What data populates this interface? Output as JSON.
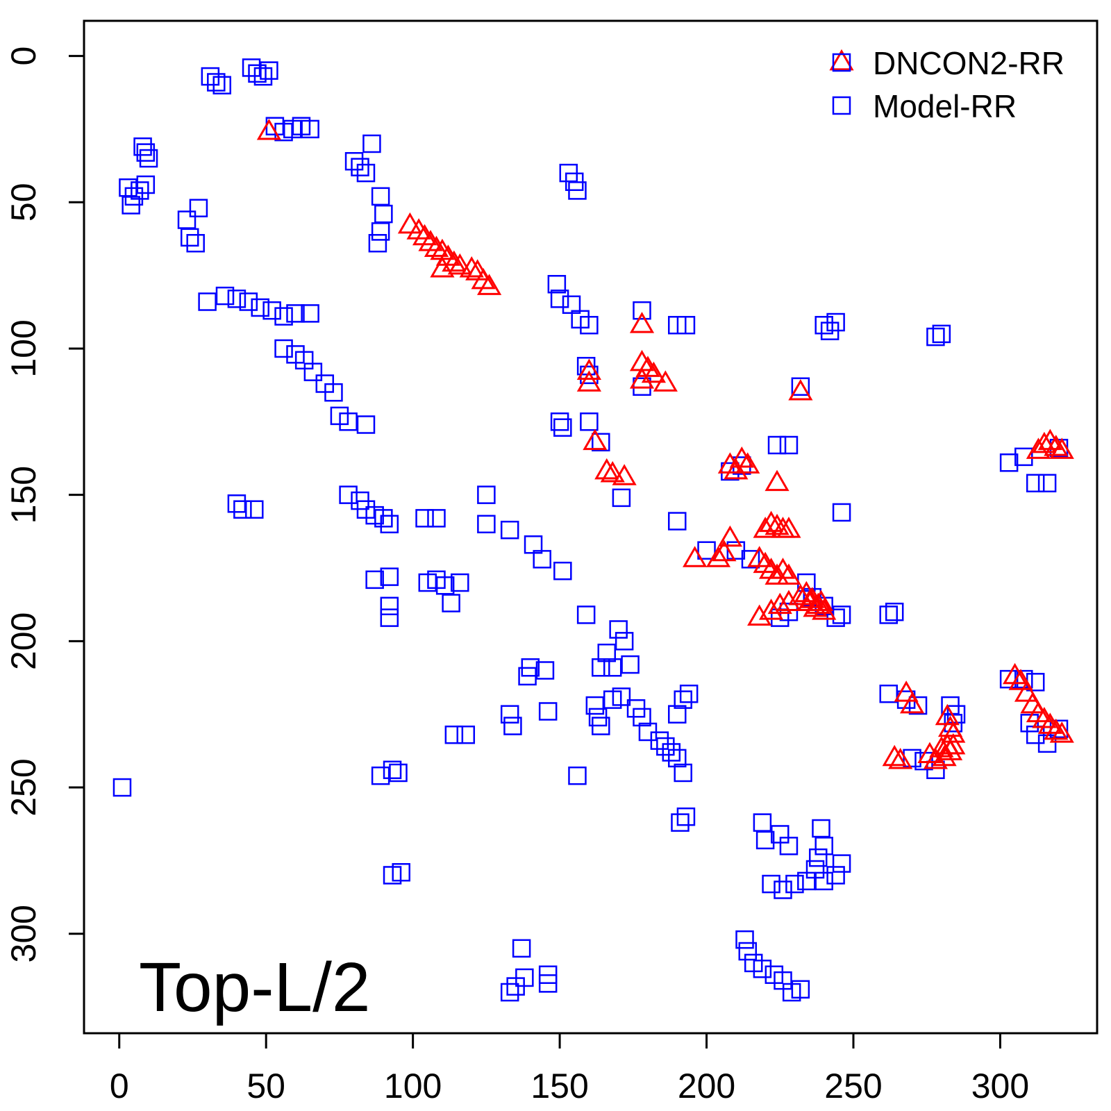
{
  "chart_data": {
    "type": "scatter",
    "title": "",
    "xlabel": "",
    "ylabel": "",
    "xlim": [
      -12,
      333
    ],
    "ylim": [
      -12,
      334
    ],
    "y_axis_inverted": true,
    "x_ticks": [
      "0",
      "50",
      "100",
      "150",
      "200",
      "250",
      "300"
    ],
    "y_ticks": [
      "0",
      "50",
      "100",
      "150",
      "200",
      "250",
      "300"
    ],
    "annotation": "Top-L/2",
    "legend": {
      "position": "top-right",
      "entries": [
        {
          "label": "DNCON2-RR",
          "markers": [
            "triangle",
            "square"
          ],
          "colors": [
            "#ff0000",
            "#0000ff"
          ]
        },
        {
          "label": "Model-RR",
          "markers": [
            "square"
          ],
          "colors": [
            "#0000ff"
          ]
        }
      ]
    },
    "series": [
      {
        "marker": "square",
        "color": "#0000ff",
        "points": [
          [
            31,
            7
          ],
          [
            33,
            9
          ],
          [
            35,
            10
          ],
          [
            45,
            4
          ],
          [
            47,
            6
          ],
          [
            49,
            7
          ],
          [
            51,
            5
          ],
          [
            53,
            24
          ],
          [
            56,
            26
          ],
          [
            59,
            25
          ],
          [
            62,
            24
          ],
          [
            65,
            25
          ],
          [
            8,
            31
          ],
          [
            9,
            33
          ],
          [
            10,
            35
          ],
          [
            3,
            45
          ],
          [
            5,
            48
          ],
          [
            7,
            46
          ],
          [
            9,
            44
          ],
          [
            4,
            51
          ],
          [
            80,
            36
          ],
          [
            82,
            38
          ],
          [
            84,
            40
          ],
          [
            86,
            30
          ],
          [
            89,
            48
          ],
          [
            90,
            54
          ],
          [
            89,
            60
          ],
          [
            88,
            64
          ],
          [
            23,
            56
          ],
          [
            24,
            62
          ],
          [
            26,
            64
          ],
          [
            27,
            52
          ],
          [
            30,
            84
          ],
          [
            36,
            82
          ],
          [
            40,
            83
          ],
          [
            44,
            84
          ],
          [
            48,
            86
          ],
          [
            52,
            87
          ],
          [
            56,
            89
          ],
          [
            60,
            88
          ],
          [
            65,
            88
          ],
          [
            56,
            100
          ],
          [
            60,
            102
          ],
          [
            63,
            104
          ],
          [
            66,
            108
          ],
          [
            70,
            112
          ],
          [
            73,
            115
          ],
          [
            75,
            123
          ],
          [
            78,
            125
          ],
          [
            84,
            126
          ],
          [
            40,
            153
          ],
          [
            42,
            155
          ],
          [
            46,
            155
          ],
          [
            78,
            150
          ],
          [
            82,
            152
          ],
          [
            84,
            155
          ],
          [
            87,
            157
          ],
          [
            90,
            158
          ],
          [
            92,
            160
          ],
          [
            104,
            158
          ],
          [
            108,
            158
          ],
          [
            87,
            179
          ],
          [
            92,
            178
          ],
          [
            92,
            188
          ],
          [
            92,
            192
          ],
          [
            105,
            180
          ],
          [
            108,
            179
          ],
          [
            111,
            181
          ],
          [
            113,
            187
          ],
          [
            116,
            180
          ],
          [
            125,
            150
          ],
          [
            125,
            160
          ],
          [
            133,
            162
          ],
          [
            141,
            167
          ],
          [
            144,
            172
          ],
          [
            151,
            176
          ],
          [
            159,
            191
          ],
          [
            140,
            209
          ],
          [
            139,
            212
          ],
          [
            145,
            210
          ],
          [
            146,
            224
          ],
          [
            133,
            225
          ],
          [
            134,
            229
          ],
          [
            114,
            232
          ],
          [
            118,
            232
          ],
          [
            89,
            246
          ],
          [
            93,
            244
          ],
          [
            95,
            245
          ],
          [
            93,
            280
          ],
          [
            96,
            279
          ],
          [
            1,
            250
          ],
          [
            156,
            246
          ],
          [
            137,
            305
          ],
          [
            133,
            320
          ],
          [
            135,
            318
          ],
          [
            138,
            315
          ],
          [
            146,
            314
          ],
          [
            146,
            317
          ],
          [
            150,
            125
          ],
          [
            151,
            127
          ],
          [
            160,
            125
          ],
          [
            153,
            40
          ],
          [
            155,
            43
          ],
          [
            156,
            46
          ],
          [
            149,
            78
          ],
          [
            150,
            83
          ],
          [
            154,
            85
          ],
          [
            157,
            90
          ],
          [
            160,
            92
          ],
          [
            178,
            87
          ],
          [
            178,
            113
          ],
          [
            190,
            92
          ],
          [
            193,
            92
          ],
          [
            159,
            106
          ],
          [
            160,
            109
          ],
          [
            232,
            113
          ],
          [
            164,
            132
          ],
          [
            171,
            151
          ],
          [
            190,
            159
          ],
          [
            200,
            169
          ],
          [
            210,
            169
          ],
          [
            215,
            172
          ],
          [
            208,
            142
          ],
          [
            212,
            140
          ],
          [
            224,
            133
          ],
          [
            228,
            133
          ],
          [
            234,
            180
          ],
          [
            236,
            185
          ],
          [
            240,
            188
          ],
          [
            244,
            192
          ],
          [
            246,
            191
          ],
          [
            225,
            192
          ],
          [
            228,
            190
          ],
          [
            166,
            204
          ],
          [
            164,
            209
          ],
          [
            168,
            209
          ],
          [
            170,
            196
          ],
          [
            172,
            200
          ],
          [
            174,
            208
          ],
          [
            171,
            219
          ],
          [
            176,
            223
          ],
          [
            178,
            226
          ],
          [
            180,
            231
          ],
          [
            184,
            234
          ],
          [
            186,
            236
          ],
          [
            188,
            238
          ],
          [
            190,
            240
          ],
          [
            192,
            245
          ],
          [
            192,
            220
          ],
          [
            190,
            225
          ],
          [
            194,
            218
          ],
          [
            162,
            222
          ],
          [
            163,
            226
          ],
          [
            164,
            229
          ],
          [
            168,
            220
          ],
          [
            191,
            262
          ],
          [
            193,
            260
          ],
          [
            219,
            262
          ],
          [
            220,
            268
          ],
          [
            225,
            266
          ],
          [
            228,
            270
          ],
          [
            222,
            283
          ],
          [
            226,
            285
          ],
          [
            230,
            283
          ],
          [
            234,
            282
          ],
          [
            237,
            278
          ],
          [
            238,
            274
          ],
          [
            240,
            270
          ],
          [
            239,
            264
          ],
          [
            240,
            282
          ],
          [
            244,
            280
          ],
          [
            246,
            276
          ],
          [
            213,
            302
          ],
          [
            214,
            306
          ],
          [
            216,
            310
          ],
          [
            219,
            312
          ],
          [
            223,
            314
          ],
          [
            226,
            316
          ],
          [
            229,
            320
          ],
          [
            232,
            319
          ],
          [
            240,
            92
          ],
          [
            242,
            94
          ],
          [
            244,
            91
          ],
          [
            278,
            96
          ],
          [
            280,
            95
          ],
          [
            246,
            156
          ],
          [
            262,
            191
          ],
          [
            264,
            190
          ],
          [
            262,
            218
          ],
          [
            268,
            220
          ],
          [
            272,
            222
          ],
          [
            283,
            222
          ],
          [
            285,
            225
          ],
          [
            284,
            228
          ],
          [
            270,
            240
          ],
          [
            274,
            241
          ],
          [
            278,
            244
          ],
          [
            303,
            213
          ],
          [
            308,
            213
          ],
          [
            312,
            214
          ],
          [
            310,
            228
          ],
          [
            312,
            232
          ],
          [
            316,
            235
          ],
          [
            320,
            230
          ],
          [
            303,
            139
          ],
          [
            308,
            137
          ],
          [
            312,
            146
          ],
          [
            316,
            146
          ],
          [
            320,
            134
          ]
        ]
      },
      {
        "marker": "triangle",
        "color": "#ff0000",
        "points": [
          [
            51,
            26
          ],
          [
            99,
            58
          ],
          [
            102,
            60
          ],
          [
            104,
            62
          ],
          [
            106,
            64
          ],
          [
            108,
            66
          ],
          [
            110,
            67
          ],
          [
            112,
            69
          ],
          [
            114,
            71
          ],
          [
            110,
            73
          ],
          [
            116,
            72
          ],
          [
            120,
            73
          ],
          [
            122,
            74
          ],
          [
            124,
            77
          ],
          [
            126,
            79
          ],
          [
            178,
            92
          ],
          [
            160,
            108
          ],
          [
            160,
            112
          ],
          [
            178,
            105
          ],
          [
            180,
            107
          ],
          [
            182,
            109
          ],
          [
            178,
            111
          ],
          [
            186,
            112
          ],
          [
            232,
            115
          ],
          [
            162,
            132
          ],
          [
            166,
            142
          ],
          [
            168,
            143
          ],
          [
            172,
            144
          ],
          [
            196,
            172
          ],
          [
            204,
            172
          ],
          [
            206,
            170
          ],
          [
            208,
            165
          ],
          [
            208,
            140
          ],
          [
            210,
            142
          ],
          [
            212,
            138
          ],
          [
            214,
            140
          ],
          [
            224,
            146
          ],
          [
            220,
            162
          ],
          [
            222,
            160
          ],
          [
            224,
            161
          ],
          [
            226,
            162
          ],
          [
            228,
            162
          ],
          [
            218,
            172
          ],
          [
            220,
            174
          ],
          [
            222,
            176
          ],
          [
            224,
            178
          ],
          [
            226,
            176
          ],
          [
            228,
            178
          ],
          [
            218,
            192
          ],
          [
            222,
            190
          ],
          [
            225,
            188
          ],
          [
            228,
            187
          ],
          [
            232,
            185
          ],
          [
            234,
            184
          ],
          [
            236,
            186
          ],
          [
            238,
            188
          ],
          [
            240,
            190
          ],
          [
            235,
            187
          ],
          [
            237,
            189
          ],
          [
            239,
            187
          ],
          [
            264,
            240
          ],
          [
            266,
            241
          ],
          [
            268,
            218
          ],
          [
            270,
            222
          ],
          [
            276,
            239
          ],
          [
            278,
            241
          ],
          [
            280,
            237
          ],
          [
            281,
            240
          ],
          [
            282,
            236
          ],
          [
            283,
            238
          ],
          [
            284,
            236
          ],
          [
            282,
            226
          ],
          [
            283,
            230
          ],
          [
            284,
            232
          ],
          [
            305,
            212
          ],
          [
            307,
            214
          ],
          [
            309,
            218
          ],
          [
            311,
            222
          ],
          [
            313,
            225
          ],
          [
            315,
            227
          ],
          [
            317,
            229
          ],
          [
            319,
            231
          ],
          [
            321,
            232
          ],
          [
            313,
            135
          ],
          [
            315,
            133
          ],
          [
            317,
            132
          ],
          [
            319,
            134
          ],
          [
            321,
            135
          ]
        ]
      }
    ]
  }
}
